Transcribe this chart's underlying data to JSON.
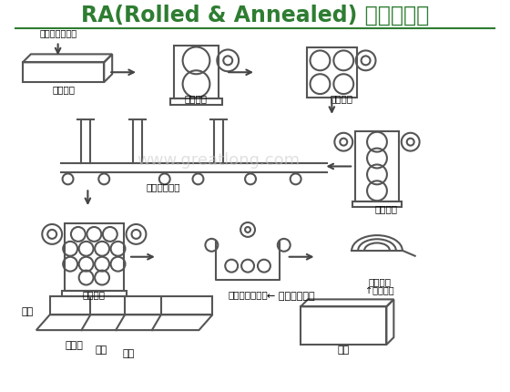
{
  "title": "RA(Rolled & Annealed) 銅生產流程",
  "title_color": "#2e7d32",
  "title_fontsize": 17,
  "bg_color": "#ffffff",
  "text_color": "#000000",
  "diagram_color": "#555555",
  "watermark": "www.greatlong.com",
  "labels": {
    "molten": "（溶層、鑄造）",
    "ingot": "（鑄胚）",
    "hot_roll": "（熱軋）",
    "face_cut": "（面削）",
    "mid_roll": "（中軋）",
    "anneal": "（退火酸洗）",
    "fine_roll": "（精軋）",
    "degrease": "（脫脂、洗淨）",
    "raw_foil": "（原箔）",
    "raw_foil2": "↑原箔工程",
    "surface": "← 表面處理工程",
    "yuan_guo": "原箔",
    "pre_treat": "前處理",
    "roughen": "粗化",
    "anti_rust": "防鏽",
    "finished": "成品"
  },
  "arrow_color": "#444444",
  "line_width": 1.5
}
